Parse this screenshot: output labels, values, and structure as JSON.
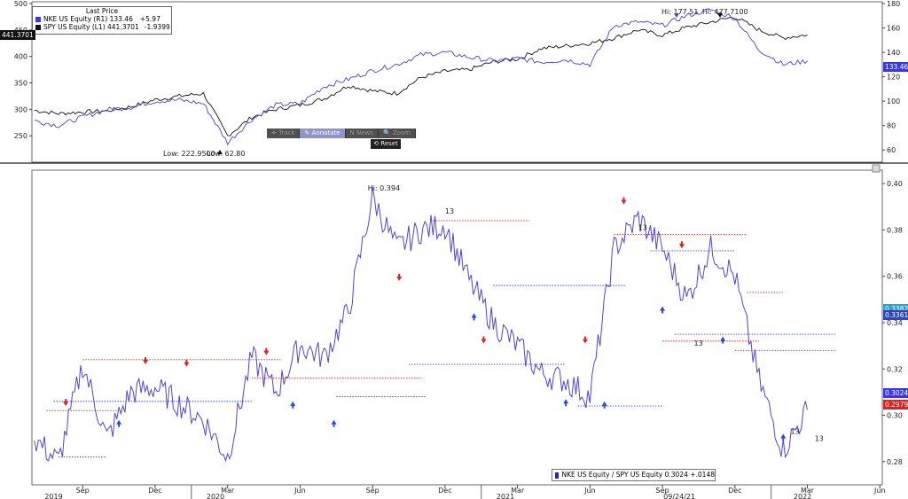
{
  "top_legend": {
    "title": "Last Price",
    "rows": [
      {
        "text": "NKE US Equity  (R1) 133.46",
        "change": "+5.97",
        "color": "#3535ff"
      },
      {
        "text": "SPY US Equity  (L1) 441.3701",
        "change": "-1.9399",
        "color": "#111111"
      }
    ]
  },
  "toolbar": {
    "track": "Track",
    "annotate": "Annotate",
    "news": "News",
    "zoom": "Zoom",
    "reset": "Reset"
  },
  "price_tags": {
    "spy": "441.3701",
    "nke": "133.46"
  },
  "ratio_tags": {
    "last": "0.3024",
    "red": "0.2979",
    "cyan": "0.3382",
    "dark": "0.3361"
  },
  "annotations": {
    "nke_hi": "Hi: 177.51",
    "spy_hi": "Hi: 477.7100",
    "spy_low": "Low: 222.9500",
    "nke_low": "Low: 62.80",
    "ratio_hi": "Hi: 0.394"
  },
  "ratio_legend": {
    "text": "NKE US Equity / SPY US Equity 0.3024  +.0148"
  },
  "colors": {
    "nke": "#4a40e0",
    "spy": "#111111",
    "ratio": "#4e46d8",
    "red": "#e02020",
    "blue": "#2a4ae0",
    "pink": "#e0207a"
  },
  "chart_data": [
    {
      "type": "line",
      "x": [
        "2019-07",
        "2019-08",
        "2019-09",
        "2019-10",
        "2019-11",
        "2019-12",
        "2020-01",
        "2020-02",
        "2020-03",
        "2020-04",
        "2020-05",
        "2020-06",
        "2020-07",
        "2020-08",
        "2020-09",
        "2020-10",
        "2020-11",
        "2020-12",
        "2021-01",
        "2021-02",
        "2021-03",
        "2021-04",
        "2021-05",
        "2021-06",
        "2021-07",
        "2021-08",
        "2021-09",
        "2021-10",
        "2021-11",
        "2021-12",
        "2022-01",
        "2022-02",
        "2022-03"
      ],
      "series": [
        {
          "name": "SPY US Equity (L1)",
          "axis": "left",
          "values": [
            298,
            292,
            295,
            297,
            305,
            318,
            325,
            330,
            250,
            285,
            300,
            308,
            320,
            345,
            335,
            330,
            360,
            372,
            375,
            390,
            395,
            415,
            420,
            425,
            435,
            450,
            440,
            455,
            465,
            475,
            450,
            435,
            441
          ]
        },
        {
          "name": "NKE US Equity (R1)",
          "axis": "right",
          "values": [
            84,
            80,
            87,
            93,
            95,
            100,
            101,
            98,
            66,
            85,
            97,
            98,
            112,
            118,
            125,
            130,
            138,
            140,
            136,
            133,
            135,
            132,
            134,
            130,
            162,
            165,
            162,
            170,
            175,
            168,
            142,
            130,
            133
          ]
        }
      ],
      "ylim_left": [
        200,
        500
      ],
      "yticks_left": [
        250,
        300,
        350,
        400,
        450,
        500
      ],
      "ylim_right": [
        50,
        180
      ],
      "yticks_right": [
        60,
        80,
        100,
        120,
        140,
        160,
        180
      ]
    },
    {
      "type": "line",
      "x": [
        "2019-07",
        "2019-08",
        "2019-09",
        "2019-10",
        "2019-11",
        "2019-12",
        "2020-01",
        "2020-02",
        "2020-03",
        "2020-04",
        "2020-05",
        "2020-06",
        "2020-07",
        "2020-08",
        "2020-09",
        "2020-10",
        "2020-11",
        "2020-12",
        "2021-01",
        "2021-02",
        "2021-03",
        "2021-04",
        "2021-05",
        "2021-06",
        "2021-07",
        "2021-08",
        "2021-09",
        "2021-10",
        "2021-11",
        "2021-12",
        "2022-01",
        "2022-02",
        "2022-03"
      ],
      "series": [
        {
          "name": "NKE US Equity / SPY US Equity",
          "values": [
            0.29,
            0.28,
            0.322,
            0.29,
            0.31,
            0.312,
            0.305,
            0.298,
            0.282,
            0.325,
            0.31,
            0.33,
            0.325,
            0.345,
            0.394,
            0.372,
            0.38,
            0.382,
            0.358,
            0.34,
            0.33,
            0.318,
            0.315,
            0.308,
            0.372,
            0.385,
            0.372,
            0.35,
            0.372,
            0.36,
            0.315,
            0.285,
            0.3024
          ]
        }
      ],
      "ylim": [
        0.27,
        0.405
      ],
      "yticks": [
        0.28,
        0.3,
        0.32,
        0.34,
        0.36,
        0.38,
        0.4
      ],
      "xtick_labels": [
        "Sep",
        "Dec",
        "Mar",
        "Jun",
        "Sep",
        "Dec",
        "Mar",
        "Jun",
        "Sep",
        "Dec",
        "Mar",
        "Jun"
      ],
      "year_labels": [
        "2019",
        "2020",
        "2021",
        "2022"
      ],
      "cursor_date": "09/24/21"
    }
  ]
}
